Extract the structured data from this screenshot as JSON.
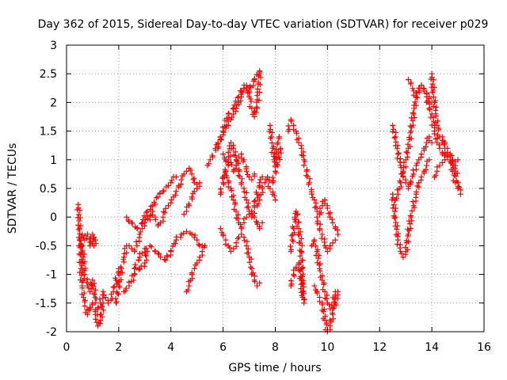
{
  "chart_data": {
    "type": "scatter",
    "title": "Day 362 of 2015, Sidereal Day-to-day VTEC variation (SDTVAR) for receiver p029",
    "xlabel": "GPS time / hours",
    "ylabel": "SDTVAR / TECUs",
    "xlim": [
      0,
      16
    ],
    "ylim": [
      -2,
      3
    ],
    "xticks": [
      0,
      2,
      4,
      6,
      8,
      10,
      12,
      14,
      16
    ],
    "yticks": [
      -2,
      -1.5,
      -1,
      -0.5,
      0,
      0.5,
      1,
      1.5,
      2,
      2.5,
      3
    ],
    "xtick_labels": [
      "0",
      "2",
      "4",
      "6",
      "8",
      "10",
      "12",
      "14",
      "16"
    ],
    "ytick_labels": [
      "-2",
      "-1.5",
      "-1",
      "-0.5",
      "0",
      "0.5",
      "1",
      "1.5",
      "2",
      "2.5",
      "3"
    ],
    "grid": true,
    "marker": "+",
    "color": "#ff0000",
    "series": [
      {
        "name": "s1",
        "x": [
          0.45,
          0.5,
          0.55,
          0.6,
          0.65,
          0.7,
          0.8,
          0.9,
          1.0,
          1.1,
          1.2,
          1.3,
          1.4
        ],
        "y": [
          0.22,
          -0.2,
          -0.9,
          -1.2,
          -1.4,
          -1.55,
          -1.7,
          -1.6,
          -1.5,
          -1.65,
          -1.9,
          -1.8,
          -1.5
        ]
      },
      {
        "name": "s2",
        "x": [
          0.5,
          0.6,
          0.7,
          0.8,
          0.9,
          1.0,
          1.1,
          1.2,
          1.3,
          1.4,
          1.5,
          1.6,
          1.7,
          1.8,
          1.9,
          2.0
        ],
        "y": [
          -0.4,
          -0.5,
          -1.0,
          -1.2,
          -1.3,
          -1.1,
          -1.4,
          -1.6,
          -1.5,
          -1.3,
          -1.4,
          -1.5,
          -1.45,
          -1.3,
          -1.1,
          -0.9
        ]
      },
      {
        "name": "s3",
        "x": [
          0.6,
          0.7,
          0.8,
          0.9,
          1.0,
          1.05,
          1.1
        ],
        "y": [
          -0.3,
          -0.4,
          -0.3,
          -0.5,
          -0.3,
          -0.5,
          -0.4
        ]
      },
      {
        "name": "s4",
        "x": [
          1.9,
          2.0,
          2.1,
          2.2,
          2.3,
          2.4,
          2.5,
          2.6,
          2.7,
          2.8,
          2.9,
          3.0,
          3.1,
          3.2,
          3.3,
          3.4,
          3.5,
          3.6,
          3.7,
          3.8,
          3.9,
          4.0,
          4.1,
          4.2,
          4.3,
          4.4,
          4.5,
          4.6,
          4.7,
          4.8,
          4.9,
          5.0
        ],
        "y": [
          -1.5,
          -1.2,
          -0.9,
          -0.7,
          -0.5,
          -0.5,
          -0.55,
          -0.6,
          -0.5,
          -0.3,
          -0.2,
          -0.1,
          0.0,
          -0.05,
          0.1,
          0.0,
          -0.15,
          -0.1,
          0.0,
          0.15,
          0.2,
          0.25,
          0.35,
          0.45,
          0.55,
          0.65,
          0.75,
          0.8,
          0.85,
          0.75,
          0.6,
          0.5
        ]
      },
      {
        "name": "s5",
        "x": [
          2.3,
          2.5,
          2.7,
          2.9,
          3.1,
          3.3,
          3.5,
          3.7,
          3.9,
          4.0,
          4.1,
          4.2
        ],
        "y": [
          0.0,
          -0.1,
          -0.2,
          -0.1,
          0.1,
          0.2,
          0.35,
          0.45,
          0.55,
          0.6,
          0.7,
          0.7
        ]
      },
      {
        "name": "s6",
        "x": [
          2.6,
          2.8,
          3.0,
          3.2,
          3.4,
          3.6,
          3.8,
          4.0,
          4.2,
          4.4,
          4.6,
          4.8,
          5.0,
          5.1,
          5.2
        ],
        "y": [
          -0.9,
          -0.7,
          -0.55,
          -0.5,
          -0.6,
          -0.7,
          -0.75,
          -0.6,
          -0.4,
          -0.3,
          -0.25,
          -0.3,
          -0.4,
          -0.5,
          -0.5
        ]
      },
      {
        "name": "s7",
        "x": [
          2.2,
          2.4,
          2.6,
          2.8,
          3.0,
          3.1
        ],
        "y": [
          -1.3,
          -1.2,
          -1.0,
          -0.9,
          -0.8,
          -0.6
        ]
      },
      {
        "name": "s8",
        "x": [
          4.6,
          4.7,
          4.8,
          4.9,
          5.0,
          5.1,
          5.2,
          5.3
        ],
        "y": [
          -1.3,
          -1.2,
          -1.0,
          -0.9,
          -0.8,
          -0.7,
          -0.6,
          -0.5
        ]
      },
      {
        "name": "s9",
        "x": [
          4.5,
          4.6,
          4.7,
          4.8,
          4.9,
          5.0,
          5.1
        ],
        "y": [
          0.05,
          0.1,
          0.2,
          0.35,
          0.45,
          0.5,
          0.6
        ]
      },
      {
        "name": "s10",
        "x": [
          5.4,
          5.5,
          5.6,
          5.7,
          5.8,
          5.9,
          6.0,
          6.1,
          6.2,
          6.3,
          6.4,
          6.5,
          6.6,
          6.7,
          6.8,
          6.9,
          7.0,
          7.1,
          7.2,
          7.3,
          7.4
        ],
        "y": [
          0.9,
          1.0,
          1.05,
          1.2,
          1.3,
          1.4,
          1.5,
          1.55,
          1.6,
          1.7,
          1.8,
          1.9,
          2.0,
          2.1,
          2.25,
          2.3,
          2.1,
          1.9,
          1.75,
          1.9,
          2.5
        ]
      },
      {
        "name": "s11",
        "x": [
          5.8,
          6.0,
          6.2,
          6.4,
          6.6,
          6.8,
          7.0,
          7.2,
          7.4
        ],
        "y": [
          1.2,
          1.5,
          1.8,
          1.9,
          2.1,
          2.3,
          2.2,
          2.4,
          2.55
        ]
      },
      {
        "name": "s12",
        "x": [
          5.9,
          6.0,
          6.1,
          6.2,
          6.3,
          6.4,
          6.5,
          6.6,
          6.7,
          6.8,
          6.9,
          7.0,
          7.1,
          7.2,
          7.3,
          7.4,
          7.5
        ],
        "y": [
          0.4,
          0.6,
          0.8,
          1.0,
          1.3,
          1.2,
          1.0,
          0.8,
          0.6,
          0.5,
          0.3,
          0.1,
          0.0,
          0.2,
          0.4,
          0.6,
          0.7
        ]
      },
      {
        "name": "s13",
        "x": [
          6.0,
          6.1,
          6.2,
          6.3,
          6.4,
          6.5,
          6.6,
          6.7,
          6.8,
          6.9,
          7.0,
          7.1,
          7.2,
          7.3,
          7.4,
          7.5
        ],
        "y": [
          0.7,
          0.8,
          0.6,
          0.5,
          0.3,
          0.1,
          -0.1,
          -0.2,
          -0.1,
          0.0,
          0.05,
          0.1,
          0.0,
          -0.1,
          -0.2,
          -0.1
        ]
      },
      {
        "name": "s14",
        "x": [
          5.9,
          6.0,
          6.1,
          6.2,
          6.3,
          6.4,
          6.5,
          6.6,
          6.7,
          6.8,
          6.9,
          7.0,
          7.1,
          7.2,
          7.3,
          7.4
        ],
        "y": [
          -0.2,
          -0.3,
          -0.4,
          -0.5,
          -0.6,
          -0.55,
          -0.45,
          -0.35,
          -0.3,
          -0.35,
          -0.5,
          -0.7,
          -0.9,
          -1.1,
          -1.2,
          -1.15
        ]
      },
      {
        "name": "s15",
        "x": [
          6.0,
          6.1,
          6.2,
          6.3,
          6.4,
          6.5,
          6.6,
          6.7,
          6.8,
          6.9,
          7.0,
          7.1,
          7.2
        ],
        "y": [
          1.1,
          1.0,
          0.9,
          0.95,
          0.8,
          0.9,
          1.05,
          1.1,
          1.0,
          0.8,
          0.7,
          0.65,
          0.75
        ]
      },
      {
        "name": "s16",
        "x": [
          7.3,
          7.4,
          7.5,
          7.6,
          7.7,
          7.8,
          7.9,
          8.0
        ],
        "y": [
          0.2,
          0.3,
          0.5,
          0.6,
          0.7,
          0.5,
          0.4,
          0.3
        ]
      },
      {
        "name": "s17",
        "x": [
          7.8,
          7.85,
          7.9,
          7.95,
          8.0,
          8.05,
          8.1,
          8.15
        ],
        "y": [
          1.6,
          1.4,
          1.2,
          1.0,
          0.9,
          1.1,
          1.3,
          1.4
        ]
      },
      {
        "name": "s18",
        "x": [
          7.9,
          8.0,
          8.1,
          8.2
        ],
        "y": [
          0.6,
          0.8,
          0.9,
          1.2
        ]
      },
      {
        "name": "s19",
        "x": [
          8.5,
          8.6,
          8.7,
          8.8,
          8.9,
          9.0,
          9.1,
          9.2,
          9.3,
          9.4,
          9.5,
          9.6,
          9.7,
          9.8,
          9.9,
          10.0,
          10.1,
          10.2,
          10.3,
          10.4
        ],
        "y": [
          1.5,
          1.7,
          1.6,
          1.5,
          1.3,
          1.2,
          1.0,
          0.8,
          0.6,
          0.4,
          0.3,
          0.1,
          0.05,
          0.2,
          0.3,
          0.2,
          0.0,
          -0.1,
          -0.2,
          -0.3
        ]
      },
      {
        "name": "s20",
        "x": [
          8.6,
          8.65,
          8.7,
          8.75,
          8.8,
          8.9,
          9.0,
          9.05
        ],
        "y": [
          -0.6,
          -0.4,
          -0.2,
          0.0,
          0.1,
          -0.2,
          -0.6,
          -1.4
        ]
      },
      {
        "name": "s21",
        "x": [
          8.6,
          8.7,
          8.8,
          8.9,
          9.0,
          9.1
        ],
        "y": [
          -1.2,
          -1.0,
          -0.9,
          -0.8,
          -1.1,
          -1.5
        ]
      },
      {
        "name": "s22",
        "x": [
          9.4,
          9.5,
          9.6,
          9.7,
          9.8,
          9.9,
          10.0,
          10.1,
          10.2,
          10.3
        ],
        "y": [
          -0.5,
          -0.4,
          -0.6,
          -0.9,
          -1.1,
          -1.3,
          -1.5,
          -1.6,
          -1.6,
          -1.3
        ]
      },
      {
        "name": "s23",
        "x": [
          9.5,
          9.6,
          9.7,
          9.8,
          9.9,
          10.0,
          10.1,
          10.2,
          10.3,
          10.4
        ],
        "y": [
          -1.2,
          -1.3,
          -1.4,
          -1.5,
          -1.8,
          -2.0,
          -1.9,
          -1.7,
          -1.5,
          -1.3
        ]
      },
      {
        "name": "s24",
        "x": [
          9.6,
          9.7,
          9.8,
          9.9,
          10.0,
          10.1,
          10.2,
          10.3
        ],
        "y": [
          0.0,
          -0.2,
          -0.3,
          -0.5,
          -0.6,
          -0.5,
          -0.45,
          -0.4
        ]
      },
      {
        "name": "s25",
        "x": [
          12.5,
          12.6,
          12.7,
          12.8,
          12.9,
          13.0,
          13.1,
          13.2,
          13.3,
          13.4,
          13.5,
          13.6,
          13.7,
          13.8,
          13.9,
          14.0
        ],
        "y": [
          1.6,
          1.4,
          1.1,
          0.9,
          0.7,
          0.6,
          0.5,
          0.6,
          0.75,
          0.9,
          1.0,
          1.1,
          1.2,
          1.3,
          1.4,
          1.3
        ]
      },
      {
        "name": "s26",
        "x": [
          12.5,
          12.6,
          12.7,
          12.8,
          12.9,
          13.0,
          13.1,
          13.2,
          13.3,
          13.4,
          13.5,
          13.6,
          13.7,
          13.8,
          13.9
        ],
        "y": [
          0.4,
          0.0,
          -0.4,
          -0.6,
          -0.7,
          -0.6,
          -0.3,
          0.0,
          0.2,
          0.4,
          0.6,
          0.7,
          0.8,
          0.9,
          1.0
        ]
      },
      {
        "name": "s27",
        "x": [
          12.6,
          12.7,
          12.8,
          12.9,
          13.0,
          13.1,
          13.2,
          13.3,
          13.4,
          13.5,
          13.6,
          13.7,
          13.8,
          13.9,
          14.0,
          14.1,
          14.2,
          14.3,
          14.4,
          14.5
        ],
        "y": [
          0.3,
          0.4,
          0.6,
          0.8,
          1.0,
          1.2,
          1.5,
          1.8,
          2.1,
          2.2,
          2.3,
          2.2,
          2.1,
          1.9,
          1.8,
          1.5,
          1.3,
          1.2,
          1.1,
          1.0
        ]
      },
      {
        "name": "s28",
        "x": [
          13.1,
          13.2,
          13.3,
          13.4,
          13.5,
          13.6,
          13.7,
          13.8,
          13.9,
          14.0
        ],
        "y": [
          2.4,
          2.35,
          2.2,
          2.1,
          2.25,
          2.3,
          2.2,
          2.15,
          2.1,
          2.0
        ]
      },
      {
        "name": "s29",
        "x": [
          14.0,
          14.05,
          14.1,
          14.15,
          14.2,
          14.3,
          14.4,
          14.5,
          14.6,
          14.7,
          14.8,
          14.9,
          15.0,
          15.1
        ],
        "y": [
          2.5,
          2.2,
          2.0,
          1.8,
          1.6,
          1.4,
          1.3,
          1.2,
          1.1,
          1.0,
          0.9,
          0.8,
          0.6,
          0.4
        ]
      },
      {
        "name": "s30",
        "x": [
          14.1,
          14.2,
          14.3,
          14.4,
          14.5,
          14.6,
          14.7,
          14.8,
          14.9,
          15.0
        ],
        "y": [
          0.7,
          0.8,
          0.9,
          0.95,
          1.0,
          1.05,
          1.1,
          1.0,
          0.9,
          1.0
        ]
      },
      {
        "name": "s31",
        "x": [
          14.4,
          14.5,
          14.6,
          14.7,
          14.8,
          14.9,
          15.0
        ],
        "y": [
          1.4,
          1.3,
          1.2,
          1.1,
          0.8,
          0.6,
          0.5
        ]
      }
    ]
  }
}
